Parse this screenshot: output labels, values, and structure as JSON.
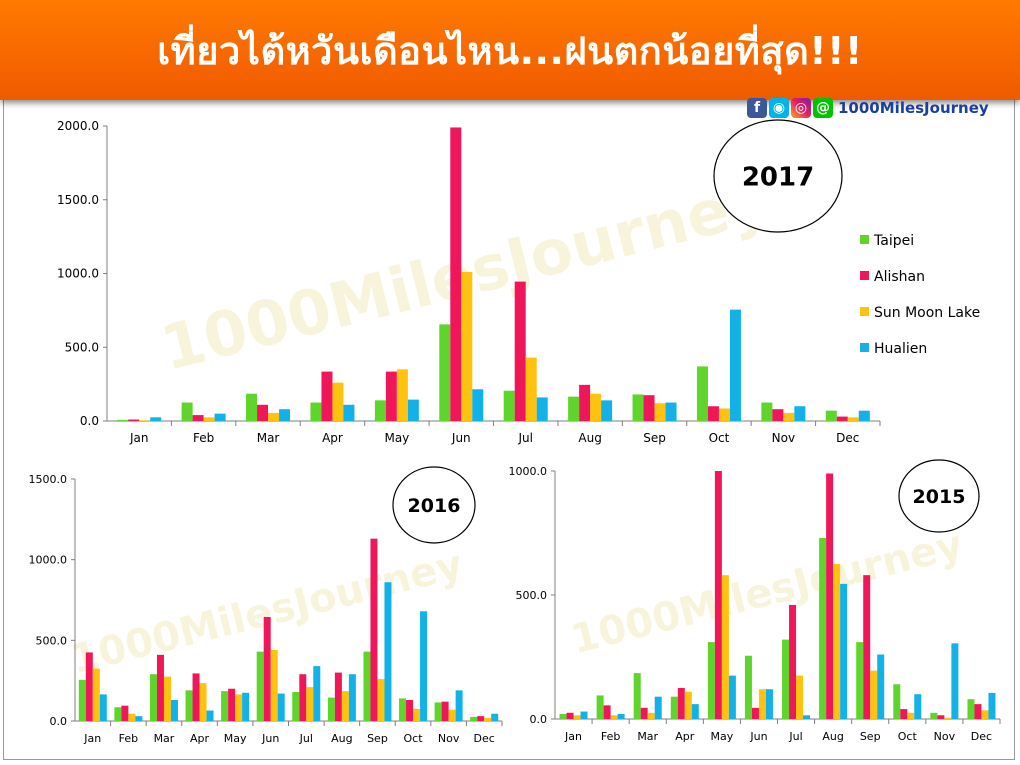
{
  "header": {
    "title": "เที่ยวไต้หวันเดือนไหน...ฝนตกน้อยที่สุด!!!",
    "brand": "1000MilesJourney",
    "brand_icons": [
      "facebook-icon",
      "messenger-icon",
      "instagram-icon",
      "line-icon"
    ],
    "watermark": "1000MilesJourney"
  },
  "colors": {
    "Taipei": "#5fd42a",
    "Alishan": "#f0165a",
    "Sun Moon Lake": "#ffc20e",
    "Hualien": "#12b2e8",
    "banner": "#fa6a00",
    "brand": "#1a3fa0"
  },
  "chart_data": [
    {
      "type": "bar",
      "badge": "2017",
      "categories": [
        "Jan",
        "Feb",
        "Mar",
        "Apr",
        "May",
        "Jun",
        "Jul",
        "Aug",
        "Sep",
        "Oct",
        "Nov",
        "Dec"
      ],
      "ylim": [
        0,
        2000
      ],
      "yticks": [
        "0.0",
        "500.0",
        "1000.0",
        "1500.0",
        "2000.0"
      ],
      "grid": false,
      "legend": "right",
      "series": [
        {
          "name": "Taipei",
          "values": [
            8,
            125,
            185,
            125,
            140,
            655,
            205,
            165,
            180,
            370,
            125,
            70
          ]
        },
        {
          "name": "Alishan",
          "values": [
            10,
            40,
            110,
            335,
            335,
            1990,
            945,
            245,
            175,
            100,
            80,
            30
          ]
        },
        {
          "name": "Sun Moon Lake",
          "values": [
            5,
            25,
            55,
            260,
            350,
            1010,
            430,
            185,
            120,
            85,
            55,
            25
          ]
        },
        {
          "name": "Hualien",
          "values": [
            25,
            50,
            80,
            110,
            145,
            215,
            160,
            140,
            125,
            755,
            100,
            70
          ]
        }
      ]
    },
    {
      "type": "bar",
      "badge": "2016",
      "categories": [
        "Jan",
        "Feb",
        "Mar",
        "Apr",
        "May",
        "Jun",
        "Jul",
        "Aug",
        "Sep",
        "Oct",
        "Nov",
        "Dec"
      ],
      "ylim": [
        0,
        1500
      ],
      "yticks": [
        "0.0",
        "500.0",
        "1000.0",
        "1500.0"
      ],
      "grid": false,
      "legend": "none",
      "series": [
        {
          "name": "Taipei",
          "values": [
            255,
            85,
            290,
            190,
            185,
            430,
            180,
            145,
            430,
            140,
            115,
            25
          ]
        },
        {
          "name": "Alishan",
          "values": [
            425,
            95,
            410,
            295,
            200,
            645,
            290,
            300,
            1130,
            130,
            120,
            30
          ]
        },
        {
          "name": "Sun Moon Lake",
          "values": [
            325,
            45,
            275,
            235,
            165,
            440,
            210,
            185,
            260,
            75,
            70,
            20
          ]
        },
        {
          "name": "Hualien",
          "values": [
            165,
            30,
            130,
            65,
            175,
            170,
            340,
            290,
            860,
            680,
            190,
            45
          ]
        }
      ]
    },
    {
      "type": "bar",
      "badge": "2015",
      "categories": [
        "Jan",
        "Feb",
        "Mar",
        "Apr",
        "May",
        "Jun",
        "Jul",
        "Aug",
        "Sep",
        "Oct",
        "Nov",
        "Dec"
      ],
      "ylim": [
        0,
        1000
      ],
      "yticks": [
        "0.0",
        "500.0",
        "1000.0"
      ],
      "grid": false,
      "legend": "none",
      "series": [
        {
          "name": "Taipei",
          "values": [
            20,
            95,
            185,
            90,
            310,
            255,
            320,
            730,
            310,
            140,
            25,
            80
          ]
        },
        {
          "name": "Alishan",
          "values": [
            25,
            55,
            45,
            125,
            1000,
            45,
            460,
            990,
            580,
            40,
            15,
            60
          ]
        },
        {
          "name": "Sun Moon Lake",
          "values": [
            15,
            15,
            25,
            110,
            580,
            120,
            175,
            625,
            195,
            25,
            5,
            35
          ]
        },
        {
          "name": "Hualien",
          "values": [
            30,
            20,
            90,
            60,
            175,
            120,
            15,
            545,
            260,
            100,
            305,
            105
          ]
        }
      ]
    }
  ]
}
